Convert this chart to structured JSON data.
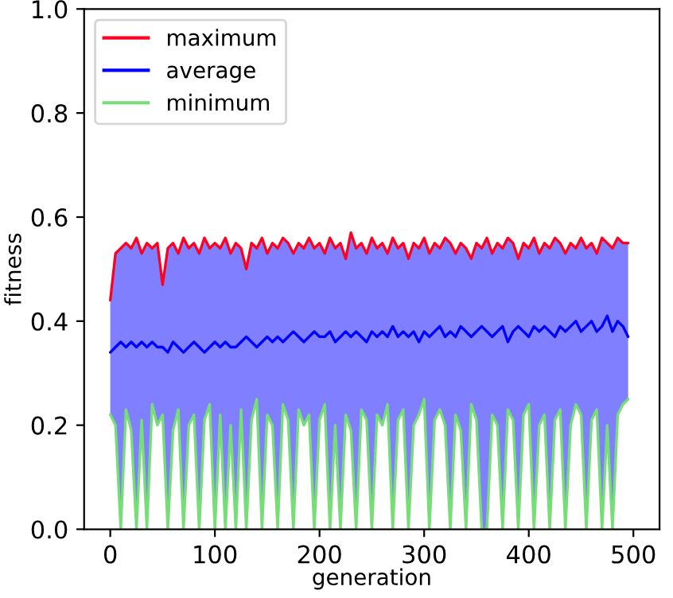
{
  "chart_data": {
    "type": "line",
    "xlabel": "generation",
    "ylabel": "fitness",
    "x": [
      0,
      5,
      10,
      15,
      20,
      25,
      30,
      35,
      40,
      45,
      50,
      55,
      60,
      65,
      70,
      75,
      80,
      85,
      90,
      95,
      100,
      105,
      110,
      115,
      120,
      125,
      130,
      135,
      140,
      145,
      150,
      155,
      160,
      165,
      170,
      175,
      180,
      185,
      190,
      195,
      200,
      205,
      210,
      215,
      220,
      225,
      230,
      235,
      240,
      245,
      250,
      255,
      260,
      265,
      270,
      275,
      280,
      285,
      290,
      295,
      300,
      305,
      310,
      315,
      320,
      325,
      330,
      335,
      340,
      345,
      350,
      355,
      360,
      365,
      370,
      375,
      380,
      385,
      390,
      395,
      400,
      405,
      410,
      415,
      420,
      425,
      430,
      435,
      440,
      445,
      450,
      455,
      460,
      465,
      470,
      475,
      480,
      485,
      490,
      495
    ],
    "series": [
      {
        "name": "maximum",
        "color": "#ff0022",
        "values": [
          0.44,
          0.53,
          0.54,
          0.55,
          0.54,
          0.56,
          0.53,
          0.55,
          0.54,
          0.55,
          0.47,
          0.54,
          0.55,
          0.53,
          0.56,
          0.54,
          0.55,
          0.53,
          0.56,
          0.54,
          0.55,
          0.54,
          0.56,
          0.53,
          0.55,
          0.54,
          0.5,
          0.55,
          0.54,
          0.56,
          0.53,
          0.55,
          0.54,
          0.56,
          0.55,
          0.53,
          0.55,
          0.54,
          0.56,
          0.54,
          0.55,
          0.53,
          0.56,
          0.54,
          0.55,
          0.52,
          0.57,
          0.54,
          0.55,
          0.53,
          0.56,
          0.54,
          0.55,
          0.53,
          0.56,
          0.54,
          0.55,
          0.52,
          0.55,
          0.54,
          0.56,
          0.53,
          0.55,
          0.54,
          0.56,
          0.55,
          0.53,
          0.55,
          0.54,
          0.52,
          0.55,
          0.54,
          0.56,
          0.53,
          0.55,
          0.54,
          0.56,
          0.55,
          0.52,
          0.55,
          0.54,
          0.56,
          0.53,
          0.55,
          0.54,
          0.56,
          0.55,
          0.53,
          0.55,
          0.54,
          0.56,
          0.54,
          0.55,
          0.53,
          0.56,
          0.55,
          0.54,
          0.56,
          0.55,
          0.55
        ]
      },
      {
        "name": "average",
        "color": "#0000ff",
        "values": [
          0.34,
          0.35,
          0.36,
          0.35,
          0.36,
          0.35,
          0.36,
          0.35,
          0.36,
          0.35,
          0.35,
          0.34,
          0.36,
          0.35,
          0.34,
          0.35,
          0.36,
          0.35,
          0.34,
          0.35,
          0.36,
          0.35,
          0.36,
          0.35,
          0.35,
          0.36,
          0.37,
          0.36,
          0.35,
          0.36,
          0.37,
          0.36,
          0.37,
          0.36,
          0.37,
          0.38,
          0.37,
          0.36,
          0.37,
          0.38,
          0.37,
          0.37,
          0.38,
          0.36,
          0.37,
          0.38,
          0.37,
          0.38,
          0.37,
          0.36,
          0.38,
          0.37,
          0.38,
          0.37,
          0.39,
          0.37,
          0.38,
          0.37,
          0.38,
          0.36,
          0.38,
          0.37,
          0.38,
          0.39,
          0.37,
          0.38,
          0.37,
          0.39,
          0.38,
          0.37,
          0.38,
          0.39,
          0.38,
          0.37,
          0.38,
          0.39,
          0.36,
          0.38,
          0.39,
          0.38,
          0.37,
          0.39,
          0.38,
          0.39,
          0.38,
          0.37,
          0.39,
          0.38,
          0.39,
          0.4,
          0.38,
          0.39,
          0.4,
          0.38,
          0.39,
          0.41,
          0.38,
          0.4,
          0.39,
          0.37
        ],
        "lower": [
          0.22,
          0.2,
          0.0,
          0.23,
          0.19,
          0.0,
          0.21,
          0.0,
          0.24,
          0.2,
          0.22,
          0.0,
          0.19,
          0.23,
          0.0,
          0.2,
          0.22,
          0.0,
          0.21,
          0.24,
          0.0,
          0.22,
          0.0,
          0.2,
          0.0,
          0.23,
          0.0,
          0.21,
          0.25,
          0.0,
          0.22,
          0.2,
          0.0,
          0.24,
          0.21,
          0.0,
          0.23,
          0.2,
          0.22,
          0.0,
          0.21,
          0.24,
          0.0,
          0.2,
          0.0,
          0.22,
          0.19,
          0.0,
          0.23,
          0.21,
          0.0,
          0.22,
          0.2,
          0.24,
          0.0,
          0.21,
          0.23,
          0.0,
          0.2,
          0.22,
          0.25,
          0.0,
          0.21,
          0.23,
          0.2,
          0.0,
          0.22,
          0.19,
          0.0,
          0.24,
          0.21,
          0.0,
          0.0,
          0.22,
          0.2,
          0.0,
          0.23,
          0.21,
          0.0,
          0.22,
          0.24,
          0.0,
          0.2,
          0.22,
          0.0,
          0.21,
          0.23,
          0.0,
          0.2,
          0.24,
          0.22,
          0.0,
          0.21,
          0.23,
          0.0,
          0.2,
          0.0,
          0.22,
          0.24,
          0.25
        ],
        "upper": [
          0.44,
          0.53,
          0.54,
          0.55,
          0.54,
          0.56,
          0.53,
          0.55,
          0.54,
          0.55,
          0.47,
          0.54,
          0.55,
          0.53,
          0.56,
          0.54,
          0.55,
          0.53,
          0.56,
          0.54,
          0.55,
          0.54,
          0.56,
          0.53,
          0.55,
          0.54,
          0.5,
          0.55,
          0.54,
          0.56,
          0.53,
          0.55,
          0.54,
          0.56,
          0.55,
          0.53,
          0.55,
          0.54,
          0.56,
          0.54,
          0.55,
          0.53,
          0.56,
          0.54,
          0.55,
          0.52,
          0.57,
          0.54,
          0.55,
          0.53,
          0.56,
          0.54,
          0.55,
          0.53,
          0.56,
          0.54,
          0.55,
          0.52,
          0.55,
          0.54,
          0.56,
          0.53,
          0.55,
          0.54,
          0.56,
          0.55,
          0.53,
          0.55,
          0.54,
          0.52,
          0.55,
          0.54,
          0.56,
          0.53,
          0.55,
          0.54,
          0.56,
          0.55,
          0.52,
          0.55,
          0.54,
          0.56,
          0.53,
          0.55,
          0.54,
          0.56,
          0.55,
          0.53,
          0.55,
          0.54,
          0.56,
          0.54,
          0.55,
          0.53,
          0.56,
          0.55,
          0.54,
          0.56,
          0.55,
          0.55
        ]
      },
      {
        "name": "minimum",
        "color": "#77dd77",
        "values": [
          0.22,
          0.2,
          0.0,
          0.23,
          0.19,
          0.0,
          0.21,
          0.0,
          0.24,
          0.2,
          0.22,
          0.0,
          0.19,
          0.23,
          0.0,
          0.2,
          0.22,
          0.0,
          0.21,
          0.24,
          0.0,
          0.22,
          0.0,
          0.2,
          0.0,
          0.23,
          0.0,
          0.21,
          0.25,
          0.0,
          0.22,
          0.2,
          0.0,
          0.24,
          0.21,
          0.0,
          0.23,
          0.2,
          0.22,
          0.0,
          0.21,
          0.24,
          0.0,
          0.2,
          0.0,
          0.22,
          0.19,
          0.0,
          0.23,
          0.21,
          0.0,
          0.22,
          0.2,
          0.24,
          0.0,
          0.21,
          0.23,
          0.0,
          0.2,
          0.22,
          0.25,
          0.0,
          0.21,
          0.23,
          0.2,
          0.0,
          0.22,
          0.19,
          0.0,
          0.24,
          0.21,
          0.0,
          0.0,
          0.22,
          0.2,
          0.0,
          0.23,
          0.21,
          0.0,
          0.22,
          0.24,
          0.0,
          0.2,
          0.22,
          0.0,
          0.21,
          0.23,
          0.0,
          0.2,
          0.24,
          0.22,
          0.0,
          0.21,
          0.23,
          0.0,
          0.2,
          0.0,
          0.22,
          0.24,
          0.25
        ]
      }
    ],
    "xlim": [
      -25,
      525
    ],
    "xticks": [
      0,
      100,
      200,
      300,
      400,
      500
    ],
    "ylim": [
      0,
      1
    ],
    "yticks": [
      {
        "value": 0,
        "label": "0.0"
      },
      {
        "value": 0.2,
        "label": "0.2"
      },
      {
        "value": 0.4,
        "label": "0.4"
      },
      {
        "value": 0.6,
        "label": "0.6"
      },
      {
        "value": 0.8,
        "label": "0.8"
      },
      {
        "value": 1,
        "label": "1.0"
      }
    ],
    "legend": "top left",
    "grid": false,
    "line_style": "solid",
    "marker": "none"
  }
}
